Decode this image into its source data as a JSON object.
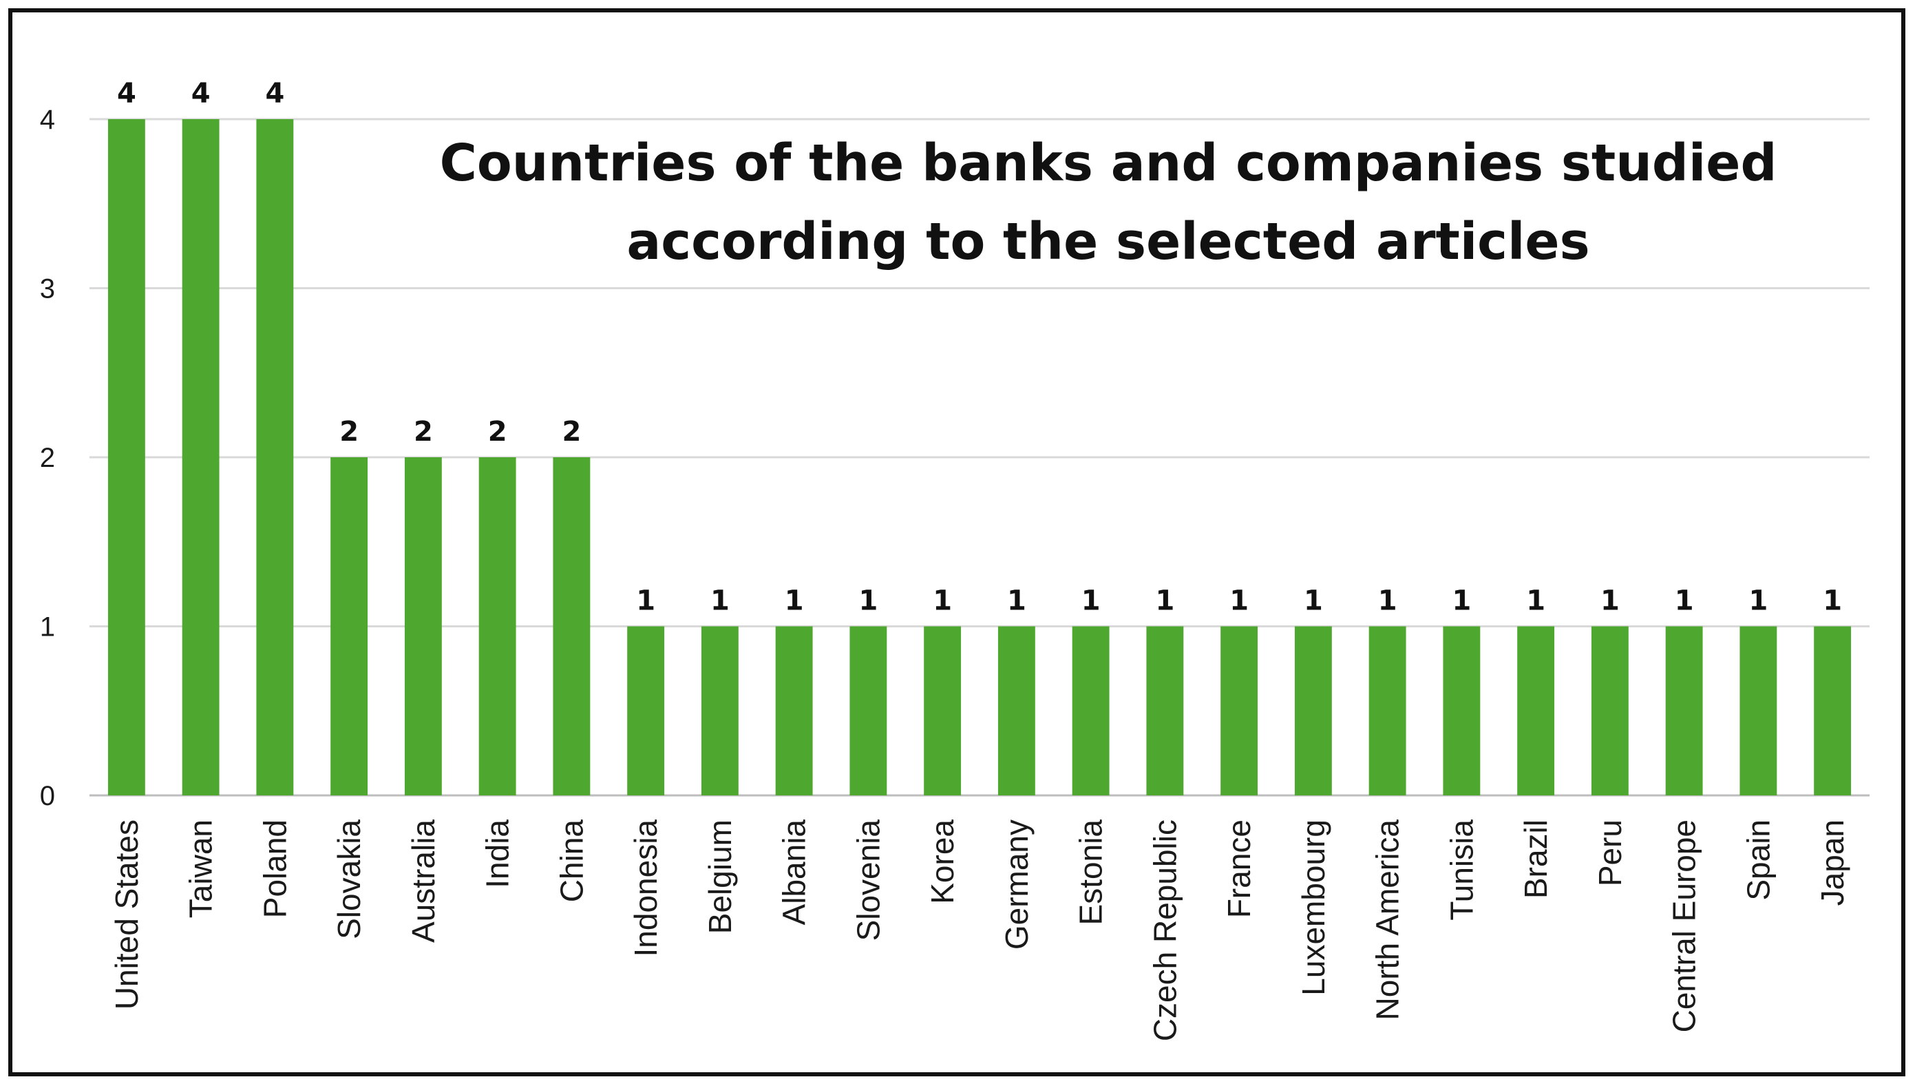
{
  "chart_data": {
    "type": "bar",
    "title_lines": [
      "Countries of the banks and companies studied",
      "according to the selected articles"
    ],
    "xlabel": "",
    "ylabel": "",
    "ylim": [
      0,
      4
    ],
    "yticks": [
      "0",
      "1",
      "2",
      "3",
      "4"
    ],
    "grid": true,
    "legend": "none",
    "bar_color": "#4ea72e",
    "categories": [
      "United States",
      "Taiwan",
      "Poland",
      "Slovakia",
      "Australia",
      "India",
      "China",
      "Indonesia",
      "Belgium",
      "Albania",
      "Slovenia",
      "Korea",
      "Germany",
      "Estonia",
      "Czech Republic",
      "France",
      "Luxembourg",
      "North America",
      "Tunisia",
      "Brazil",
      "Peru",
      "Central Europe",
      "Spain",
      "Japan"
    ],
    "values": [
      4,
      4,
      4,
      2,
      2,
      2,
      2,
      1,
      1,
      1,
      1,
      1,
      1,
      1,
      1,
      1,
      1,
      1,
      1,
      1,
      1,
      1,
      1,
      1
    ],
    "data_labels": [
      "4",
      "4",
      "4",
      "2",
      "2",
      "2",
      "2",
      "1",
      "1",
      "1",
      "1",
      "1",
      "1",
      "1",
      "1",
      "1",
      "1",
      "1",
      "1",
      "1",
      "1",
      "1",
      "1",
      "1"
    ]
  }
}
